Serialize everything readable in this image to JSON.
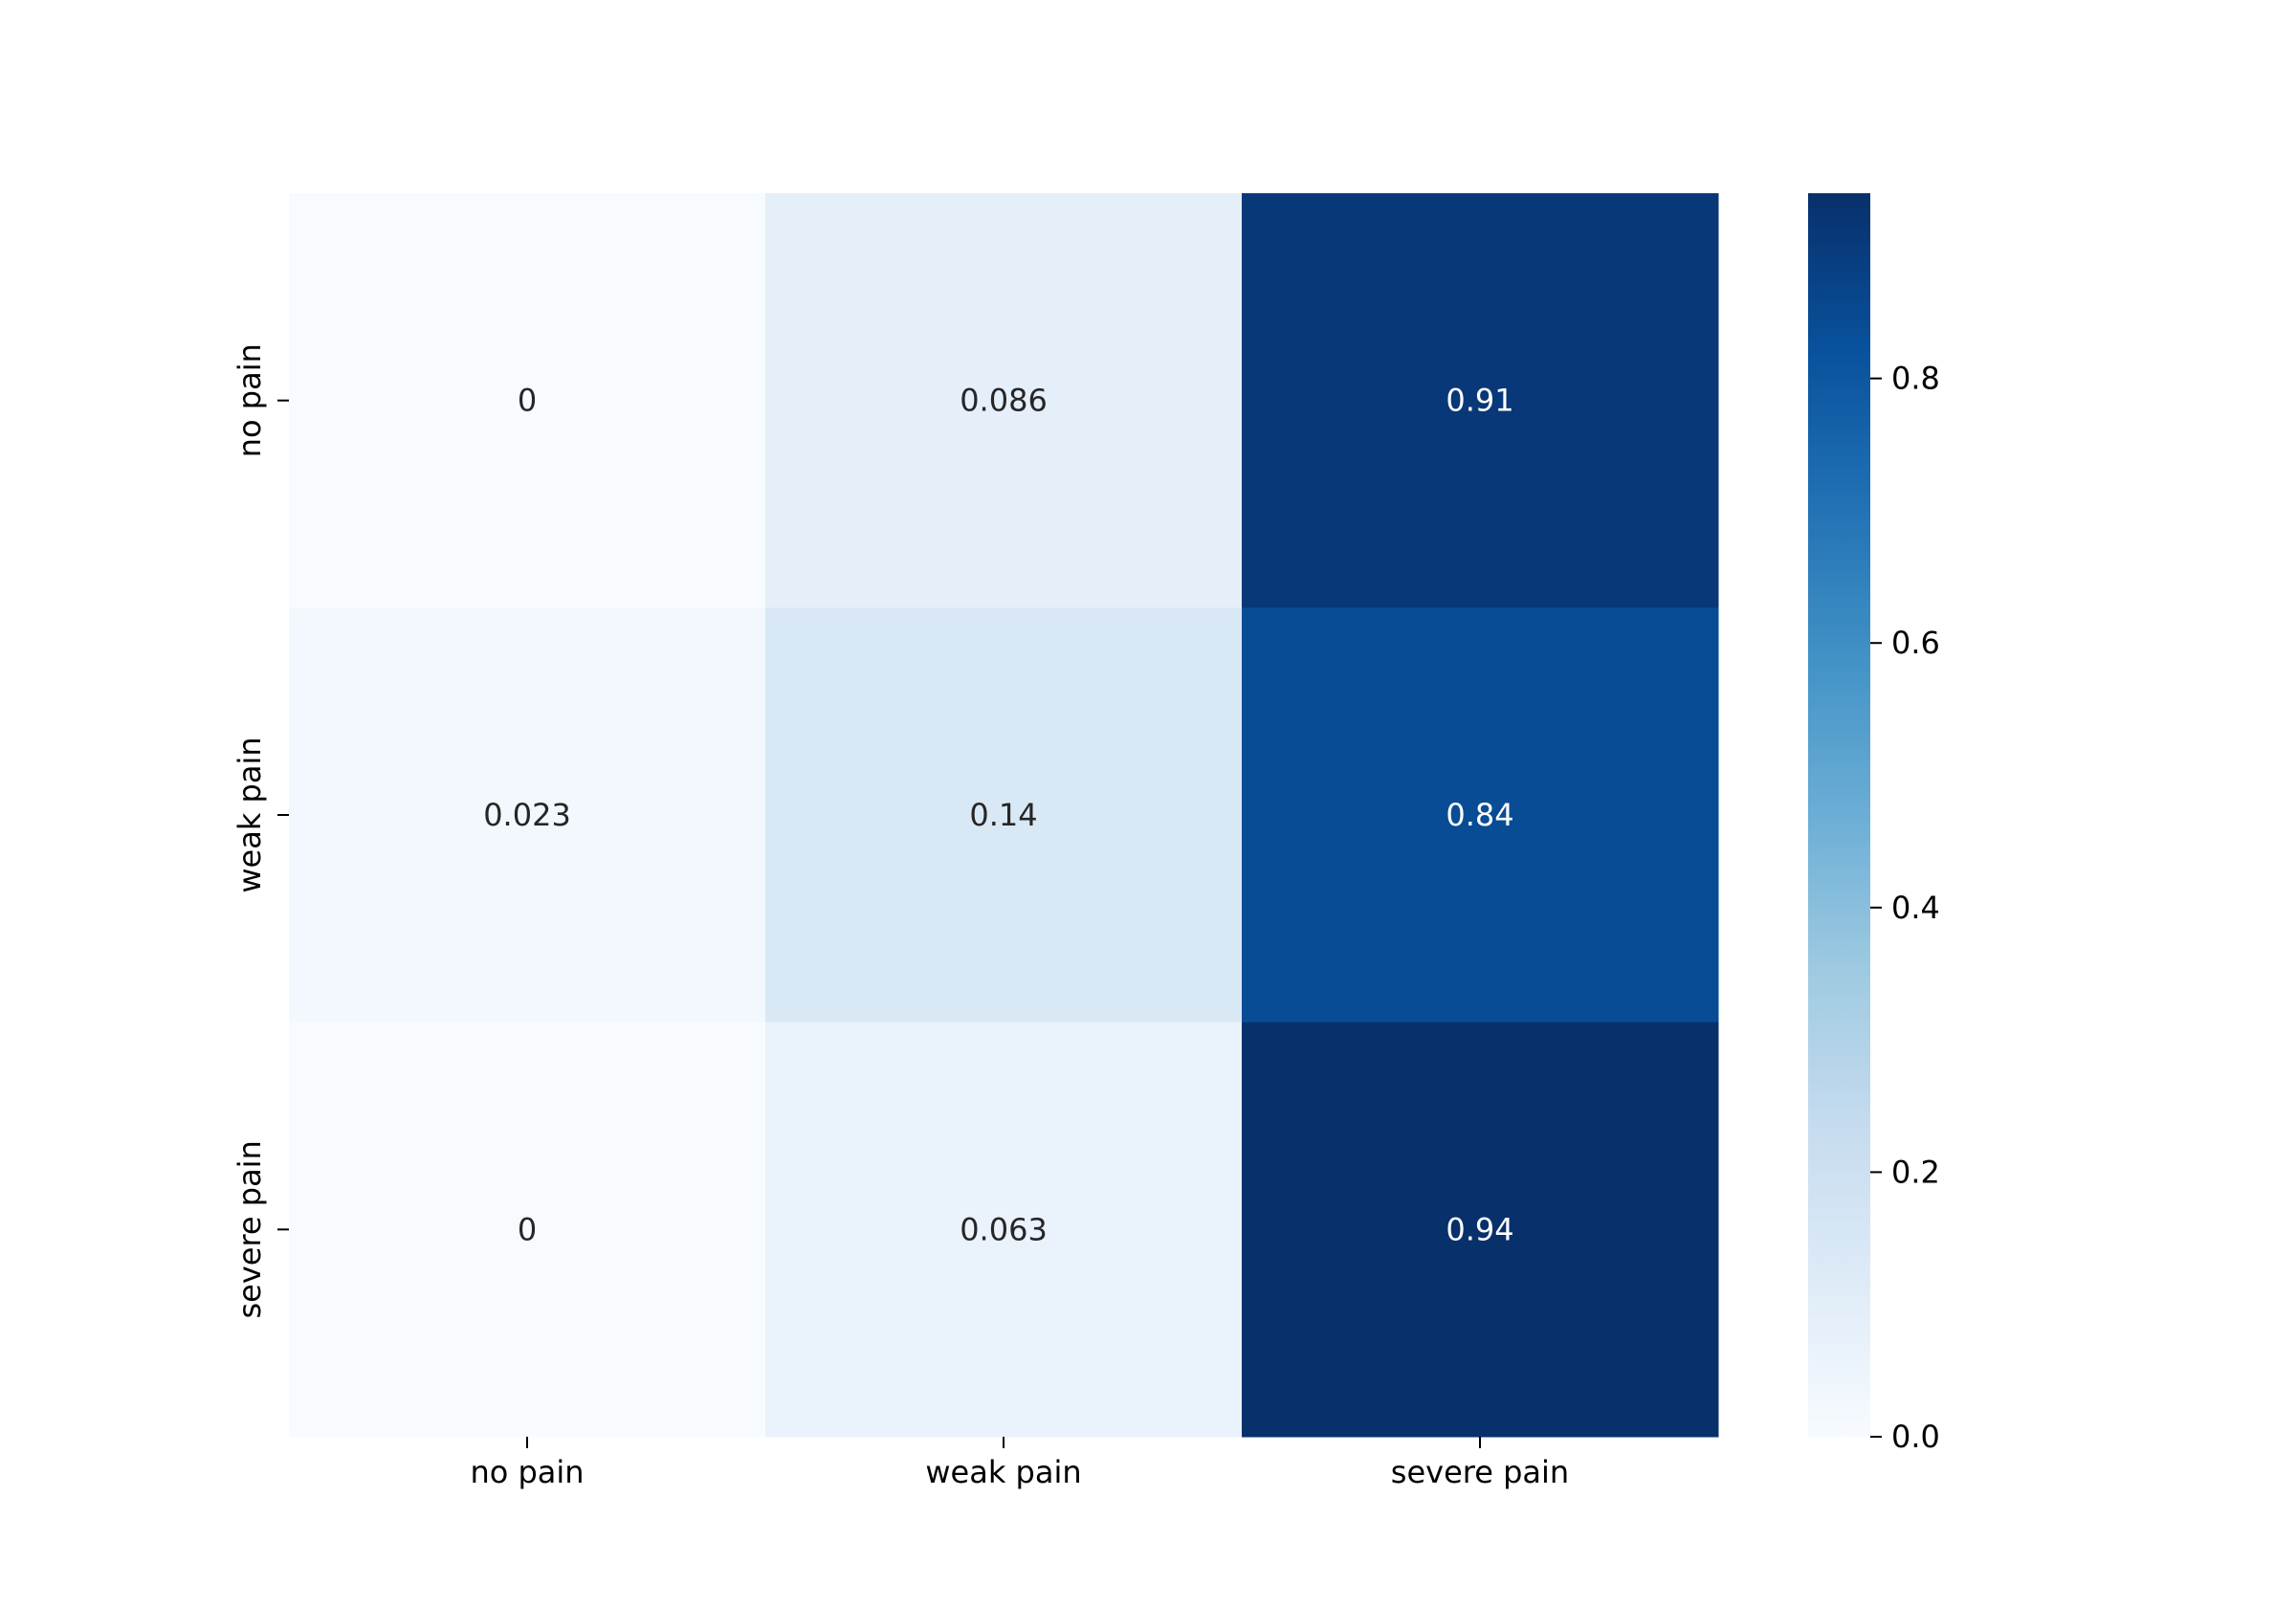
{
  "chart_data": {
    "type": "heatmap",
    "title": "",
    "xlabel": "",
    "ylabel": "",
    "x_categories": [
      "no pain",
      "weak pain",
      "severe pain"
    ],
    "y_categories": [
      "no pain",
      "weak pain",
      "severe pain"
    ],
    "values": [
      [
        0,
        0.086,
        0.91
      ],
      [
        0.023,
        0.14,
        0.84
      ],
      [
        0,
        0.063,
        0.94
      ]
    ],
    "value_labels": [
      [
        "0",
        "0.086",
        "0.91"
      ],
      [
        "0.023",
        "0.14",
        "0.84"
      ],
      [
        "0",
        "0.063",
        "0.94"
      ]
    ],
    "colormap": "Blues",
    "colorbar": {
      "range": [
        0,
        0.94
      ],
      "ticks": [
        0.0,
        0.2,
        0.4,
        0.6,
        0.8
      ],
      "tick_labels": [
        "0.0",
        "0.2",
        "0.4",
        "0.6",
        "0.8"
      ]
    },
    "colormap_stops": [
      "#f7fbff",
      "#deebf7",
      "#c6dbef",
      "#9ecae1",
      "#6baed6",
      "#4292c6",
      "#2171b5",
      "#08519c",
      "#08306b"
    ],
    "annotation_text_colors": {
      "light": "#ffffff",
      "dark": "#262626"
    },
    "grid": false,
    "legend": "colorbar-right"
  }
}
